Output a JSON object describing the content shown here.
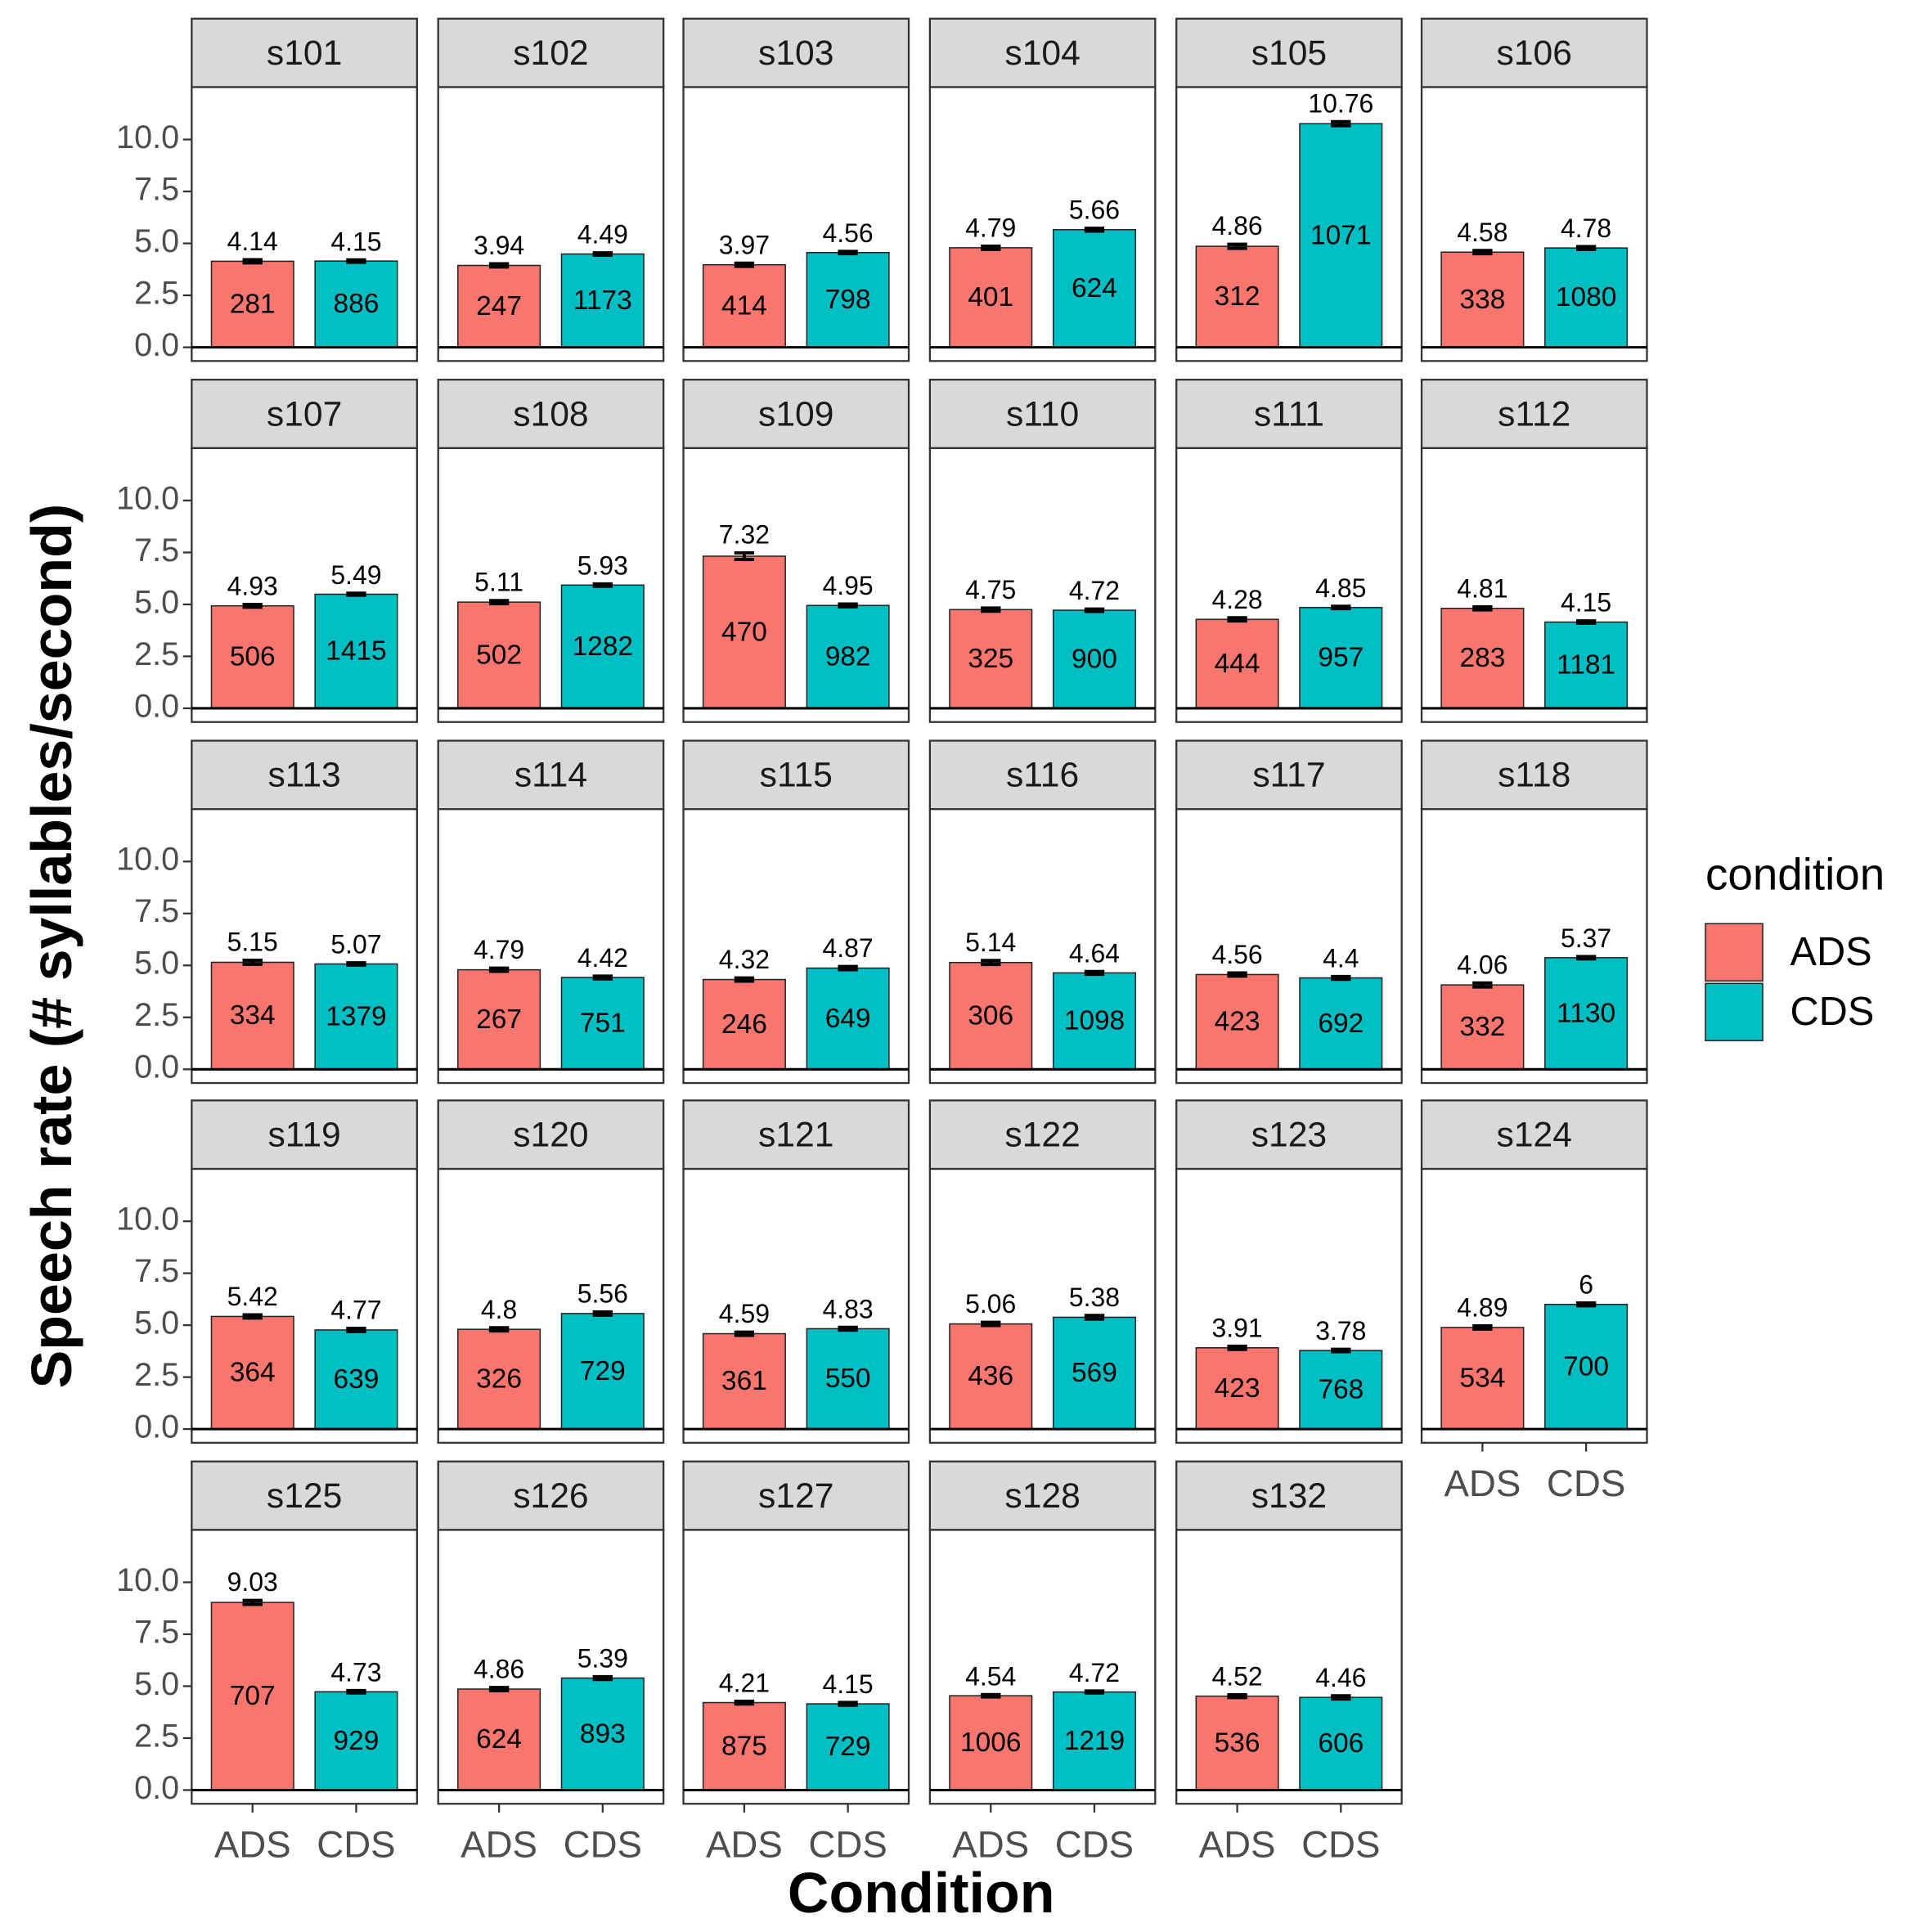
{
  "chart_data": {
    "type": "bar",
    "x_label": "Condition",
    "y_label": "Speech rate (# syllables/second)",
    "legend_title": "condition",
    "categories": [
      "ADS",
      "CDS"
    ],
    "colors": [
      "#f8766d",
      "#00bfc4"
    ],
    "ylim": [
      -0.66,
      12.52
    ],
    "yticks": [
      {
        "value": 0,
        "label": "0.0"
      },
      {
        "value": 2.5,
        "label": "2.5"
      },
      {
        "value": 5,
        "label": "5.0"
      },
      {
        "value": 7.5,
        "label": "7.5"
      },
      {
        "value": 10,
        "label": "10.0"
      }
    ],
    "facets": [
      {
        "title": "s101",
        "values": [
          4.14,
          4.15
        ],
        "counts": [
          281,
          886
        ],
        "errors": [
          0.08,
          0.06
        ]
      },
      {
        "title": "s102",
        "values": [
          3.94,
          4.49
        ],
        "counts": [
          247,
          1173
        ],
        "errors": [
          0.08,
          0.06
        ]
      },
      {
        "title": "s103",
        "values": [
          3.97,
          4.56
        ],
        "counts": [
          414,
          798
        ],
        "errors": [
          0.08,
          0.06
        ]
      },
      {
        "title": "s104",
        "values": [
          4.79,
          5.66
        ],
        "counts": [
          401,
          624
        ],
        "errors": [
          0.08,
          0.07
        ]
      },
      {
        "title": "s105",
        "values": [
          4.86,
          10.76
        ],
        "counts": [
          312,
          1071
        ],
        "errors": [
          0.1,
          0.1
        ]
      },
      {
        "title": "s106",
        "values": [
          4.58,
          4.78
        ],
        "counts": [
          338,
          1080
        ],
        "errors": [
          0.08,
          0.07
        ]
      },
      {
        "title": "s107",
        "values": [
          4.93,
          5.49
        ],
        "counts": [
          506,
          1415
        ],
        "errors": [
          0.07,
          0.05
        ]
      },
      {
        "title": "s108",
        "values": [
          5.11,
          5.93
        ],
        "counts": [
          502,
          1282
        ],
        "errors": [
          0.08,
          0.06
        ]
      },
      {
        "title": "s109",
        "values": [
          7.32,
          4.95
        ],
        "counts": [
          470,
          982
        ],
        "errors": [
          0.16,
          0.07
        ]
      },
      {
        "title": "s110",
        "values": [
          4.75,
          4.72
        ],
        "counts": [
          325,
          900
        ],
        "errors": [
          0.08,
          0.06
        ]
      },
      {
        "title": "s111",
        "values": [
          4.28,
          4.85
        ],
        "counts": [
          444,
          957
        ],
        "errors": [
          0.08,
          0.06
        ]
      },
      {
        "title": "s112",
        "values": [
          4.81,
          4.15
        ],
        "counts": [
          283,
          1181
        ],
        "errors": [
          0.08,
          0.06
        ]
      },
      {
        "title": "s113",
        "values": [
          5.15,
          5.07
        ],
        "counts": [
          334,
          1379
        ],
        "errors": [
          0.1,
          0.06
        ]
      },
      {
        "title": "s114",
        "values": [
          4.79,
          4.42
        ],
        "counts": [
          267,
          751
        ],
        "errors": [
          0.08,
          0.07
        ]
      },
      {
        "title": "s115",
        "values": [
          4.32,
          4.87
        ],
        "counts": [
          246,
          649
        ],
        "errors": [
          0.08,
          0.08
        ]
      },
      {
        "title": "s116",
        "values": [
          5.14,
          4.64
        ],
        "counts": [
          306,
          1098
        ],
        "errors": [
          0.1,
          0.07
        ]
      },
      {
        "title": "s117",
        "values": [
          4.56,
          4.4
        ],
        "counts": [
          423,
          692
        ],
        "errors": [
          0.08,
          0.07
        ]
      },
      {
        "title": "s118",
        "values": [
          4.06,
          5.37
        ],
        "counts": [
          332,
          1130
        ],
        "errors": [
          0.1,
          0.06
        ]
      },
      {
        "title": "s119",
        "values": [
          5.42,
          4.77
        ],
        "counts": [
          364,
          639
        ],
        "errors": [
          0.08,
          0.08
        ]
      },
      {
        "title": "s120",
        "values": [
          4.8,
          5.56
        ],
        "counts": [
          326,
          729
        ],
        "errors": [
          0.08,
          0.08
        ]
      },
      {
        "title": "s121",
        "values": [
          4.59,
          4.83
        ],
        "counts": [
          361,
          550
        ],
        "errors": [
          0.08,
          0.07
        ]
      },
      {
        "title": "s122",
        "values": [
          5.06,
          5.38
        ],
        "counts": [
          436,
          569
        ],
        "errors": [
          0.08,
          0.09
        ]
      },
      {
        "title": "s123",
        "values": [
          3.91,
          3.78
        ],
        "counts": [
          423,
          768
        ],
        "errors": [
          0.08,
          0.06
        ]
      },
      {
        "title": "s124",
        "values": [
          4.89,
          6
        ],
        "counts": [
          534,
          700
        ],
        "errors": [
          0.08,
          0.07
        ]
      },
      {
        "title": "s125",
        "values": [
          9.03,
          4.73
        ],
        "counts": [
          707,
          929
        ],
        "errors": [
          0.1,
          0.06
        ]
      },
      {
        "title": "s126",
        "values": [
          4.86,
          5.39
        ],
        "counts": [
          624,
          893
        ],
        "errors": [
          0.08,
          0.07
        ]
      },
      {
        "title": "s127",
        "values": [
          4.21,
          4.15
        ],
        "counts": [
          875,
          729
        ],
        "errors": [
          0.07,
          0.07
        ]
      },
      {
        "title": "s128",
        "values": [
          4.54,
          4.72
        ],
        "counts": [
          1006,
          1219
        ],
        "errors": [
          0.06,
          0.05
        ]
      },
      {
        "title": "s132",
        "values": [
          4.52,
          4.46
        ],
        "counts": [
          536,
          606
        ],
        "errors": [
          0.07,
          0.08
        ]
      }
    ]
  }
}
